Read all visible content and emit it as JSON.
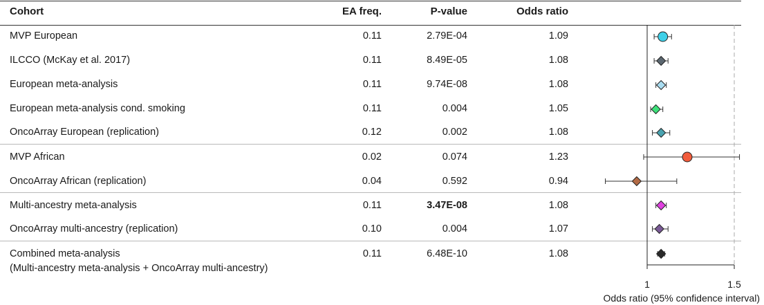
{
  "headers": {
    "cohort": "Cohort",
    "ea_freq": "EA freq.",
    "p_value": "P-value",
    "odds_ratio": "Odds ratio"
  },
  "rows": [
    {
      "cohort": "MVP European",
      "ea_freq": "0.11",
      "p_value": "2.79E-04",
      "odds_ratio": "1.09"
    },
    {
      "cohort": "ILCCO (McKay et al. 2017)",
      "ea_freq": "0.11",
      "p_value": "8.49E-05",
      "odds_ratio": "1.08"
    },
    {
      "cohort": "European meta-analysis",
      "ea_freq": "0.11",
      "p_value": "9.74E-08",
      "odds_ratio": "1.08"
    },
    {
      "cohort": "European meta-analysis cond. smoking",
      "ea_freq": "0.11",
      "p_value": "0.004",
      "odds_ratio": "1.05"
    },
    {
      "cohort": "OncoArray European (replication)",
      "ea_freq": "0.12",
      "p_value": "0.002",
      "odds_ratio": "1.08"
    },
    {
      "cohort": "MVP African",
      "ea_freq": "0.02",
      "p_value": "0.074",
      "odds_ratio": "1.23"
    },
    {
      "cohort": "OncoArray African (replication)",
      "ea_freq": "0.04",
      "p_value": "0.592",
      "odds_ratio": "0.94"
    },
    {
      "cohort": "Multi-ancestry meta-analysis",
      "ea_freq": "0.11",
      "p_value": "3.47E-08",
      "odds_ratio": "1.08",
      "p_bold": true
    },
    {
      "cohort": "OncoArray multi-ancestry (replication)",
      "ea_freq": "0.10",
      "p_value": "0.004",
      "odds_ratio": "1.07"
    },
    {
      "cohort": "Combined meta-analysis",
      "cohort_line2": "(Multi-ancestry meta-analysis + OncoArray multi-ancestry)",
      "ea_freq": "0.11",
      "p_value": "6.48E-10",
      "odds_ratio": "1.08"
    }
  ],
  "chart_data": {
    "type": "scatter",
    "subtype": "forest_plot",
    "xlabel": "Odds ratio (95% confidence interval)",
    "xlim": [
      0.8,
      1.53
    ],
    "xticks": [
      1,
      1.5
    ],
    "xtick_labels": [
      "1",
      "1.5"
    ],
    "reference_lines": [
      1,
      1.5
    ],
    "categories": [
      "MVP European",
      "ILCCO (McKay et al. 2017)",
      "European meta-analysis",
      "European meta-analysis cond. smoking",
      "OncoArray European (replication)",
      "MVP African",
      "OncoArray African (replication)",
      "Multi-ancestry meta-analysis",
      "OncoArray multi-ancestry (replication)",
      "Combined meta-analysis"
    ],
    "points": [
      {
        "or": 1.09,
        "ci_low": 1.04,
        "ci_high": 1.14,
        "marker": "circle",
        "color": "#3fd0e8"
      },
      {
        "or": 1.08,
        "ci_low": 1.04,
        "ci_high": 1.12,
        "marker": "diamond",
        "color": "#5b6770"
      },
      {
        "or": 1.08,
        "ci_low": 1.05,
        "ci_high": 1.11,
        "marker": "diamond",
        "color": "#a9dcf0"
      },
      {
        "or": 1.05,
        "ci_low": 1.02,
        "ci_high": 1.09,
        "marker": "diamond",
        "color": "#3ee07a"
      },
      {
        "or": 1.08,
        "ci_low": 1.03,
        "ci_high": 1.13,
        "marker": "diamond",
        "color": "#4aa3b0"
      },
      {
        "or": 1.23,
        "ci_low": 0.98,
        "ci_high": 1.53,
        "marker": "circle",
        "color": "#f25c3c"
      },
      {
        "or": 0.94,
        "ci_low": 0.76,
        "ci_high": 1.17,
        "marker": "diamond",
        "color": "#b26a45"
      },
      {
        "or": 1.08,
        "ci_low": 1.05,
        "ci_high": 1.11,
        "marker": "diamond",
        "color": "#e040e0"
      },
      {
        "or": 1.07,
        "ci_low": 1.03,
        "ci_high": 1.12,
        "marker": "diamond",
        "color": "#7a5a96"
      },
      {
        "or": 1.08,
        "ci_low": 1.06,
        "ci_high": 1.1,
        "marker": "diamond",
        "color": "#2a2a2a"
      }
    ]
  }
}
